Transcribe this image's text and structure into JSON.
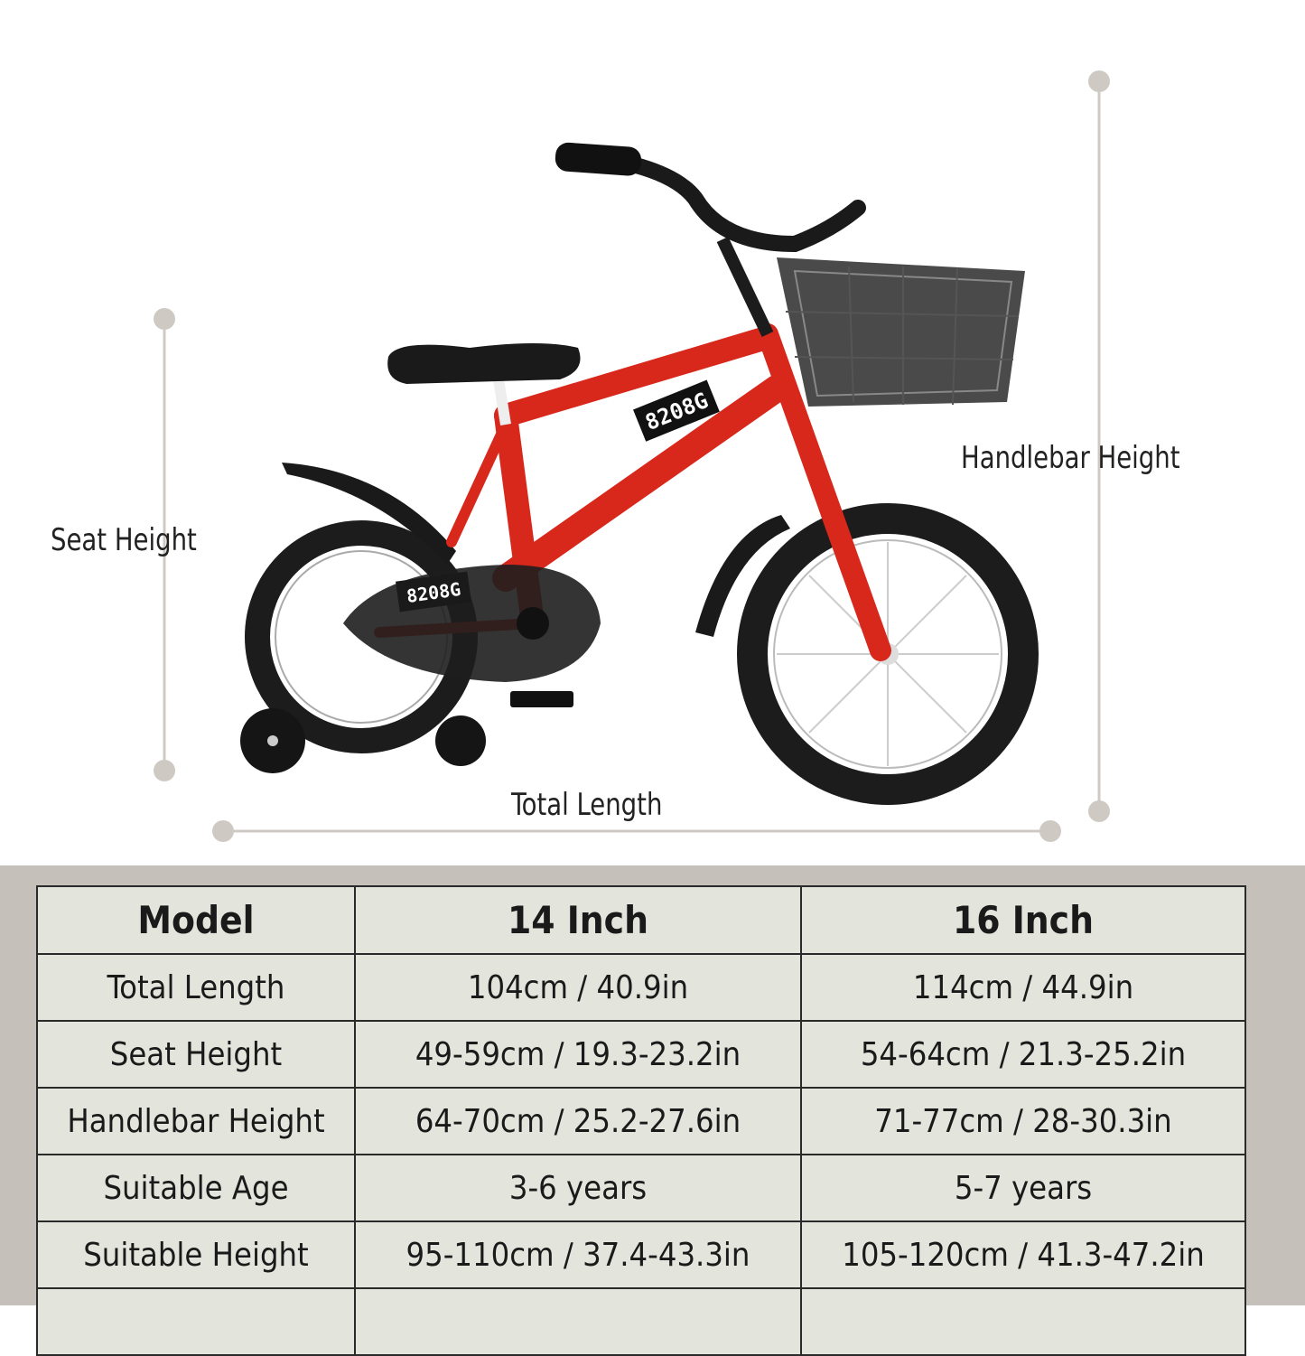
{
  "dimensions": {
    "seat_height": "Seat Height",
    "handlebar_height": "Handlebar Height",
    "total_length": "Total Length"
  },
  "bike": {
    "frame_label": "8208G",
    "chainguard_label": "8208G",
    "frame_color": "#d8281c"
  },
  "table": {
    "headers": [
      "Model",
      "14 Inch",
      "16 Inch"
    ],
    "rows": [
      [
        "Total Length",
        "104cm / 40.9in",
        "114cm / 44.9in"
      ],
      [
        "Seat Height",
        "49-59cm / 19.3-23.2in",
        "54-64cm / 21.3-25.2in"
      ],
      [
        "Handlebar Height",
        "64-70cm / 25.2-27.6in",
        "71-77cm / 28-30.3in"
      ],
      [
        "Suitable Age",
        "3-6 years",
        "5-7 years"
      ],
      [
        "Suitable Height",
        "95-110cm / 37.4-43.3in",
        "105-120cm / 41.3-47.2in"
      ]
    ]
  }
}
